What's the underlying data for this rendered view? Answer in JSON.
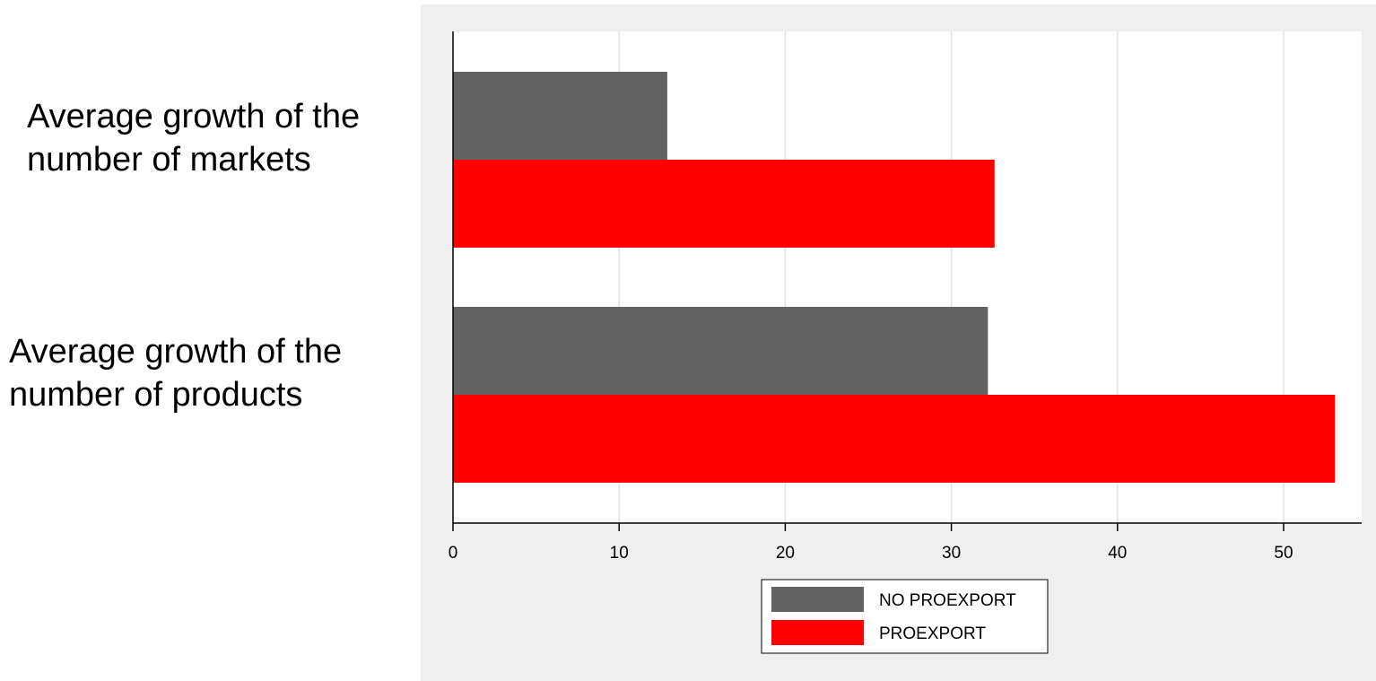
{
  "chart_data": {
    "type": "bar",
    "orientation": "horizontal",
    "categories": [
      [
        "Average growth of the",
        "number of markets"
      ],
      [
        "Average growth of the",
        "number of products"
      ]
    ],
    "series": [
      {
        "name": "NO PROEXPORT",
        "color": "#636363",
        "values": [
          12.9,
          32.2
        ]
      },
      {
        "name": "PROEXPORT",
        "color": "#ff0000",
        "values": [
          32.6,
          53.1
        ]
      }
    ],
    "xlim": [
      0,
      55
    ],
    "xticks": [
      0,
      10,
      20,
      30,
      40,
      50
    ],
    "grid": true,
    "legend_position": "bottom",
    "title": "",
    "xlabel": "",
    "ylabel": ""
  }
}
